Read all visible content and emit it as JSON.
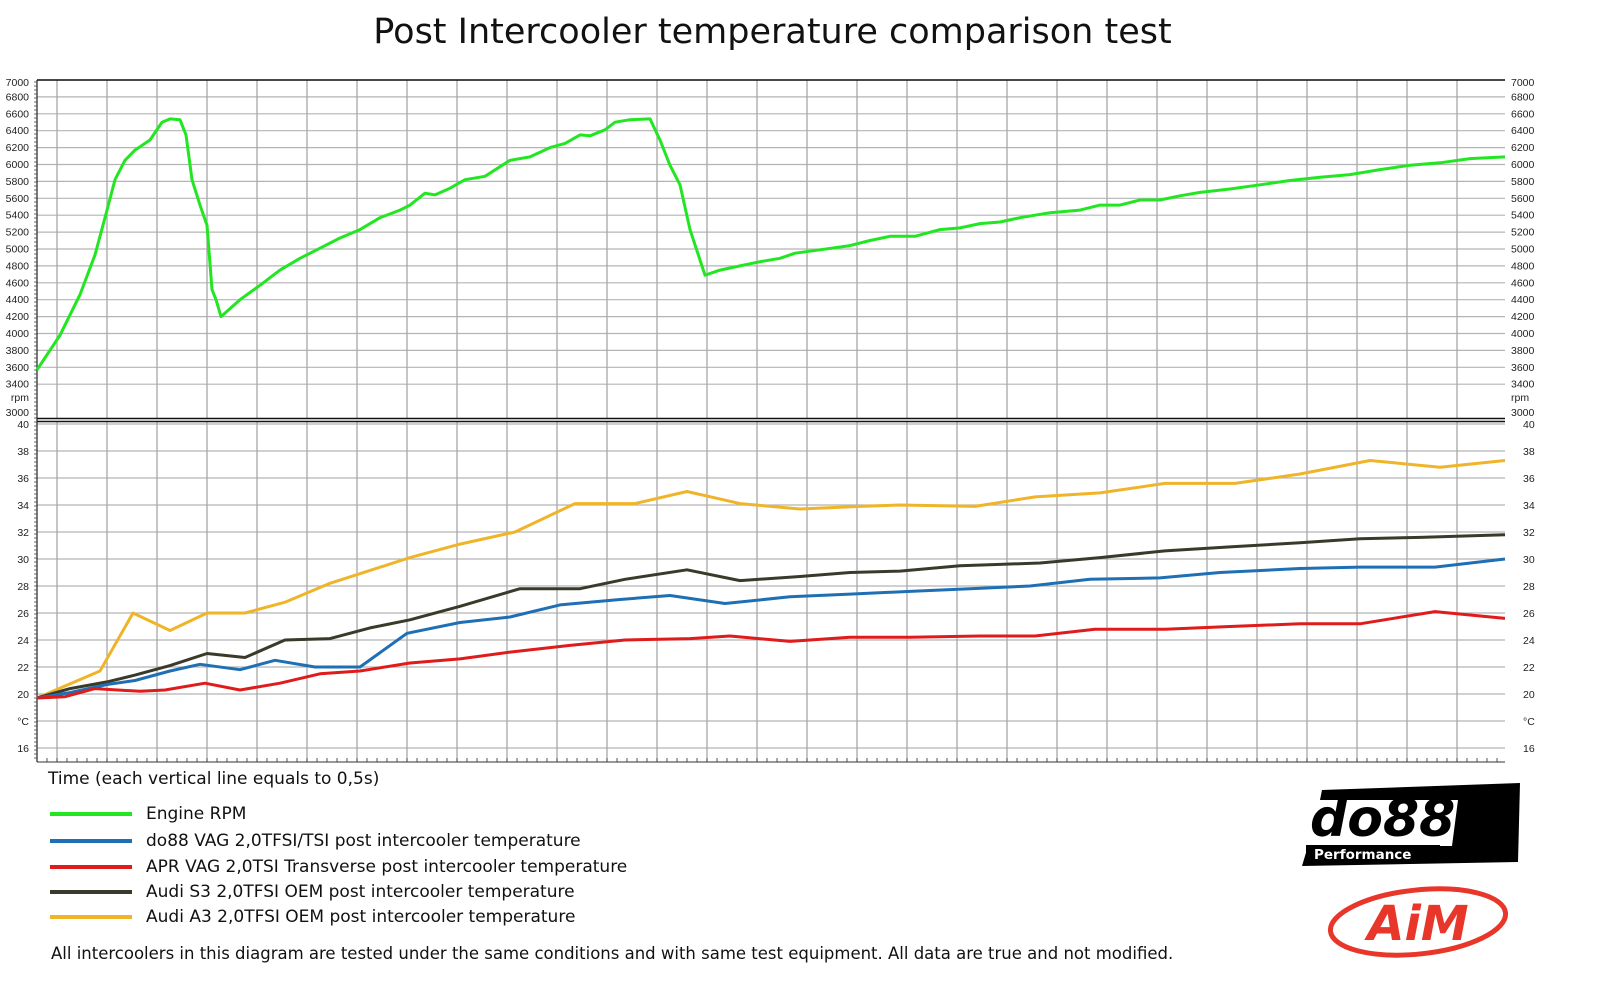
{
  "chart_data": {
    "title": "Post Intercooler temperature comparison test",
    "xlabel": "Time (each vertical line equals to 0,5s)",
    "type": "line",
    "grid": true,
    "legend_position": "bottom-left",
    "panels": [
      {
        "name": "rpm",
        "unit_label": "rpm",
        "ylim": [
          3000,
          7000
        ],
        "tick_labels": [
          "7000",
          "6800",
          "6600",
          "6400",
          "6200",
          "6000",
          "5800",
          "5600",
          "5400",
          "5200",
          "5000",
          "4800",
          "4600",
          "4400",
          "4200",
          "4000",
          "3800",
          "3600",
          "3400",
          "3000"
        ],
        "series": [
          {
            "name": "Engine RPM",
            "color": "#22e622",
            "x": [
              0,
              0.23,
              0.43,
              0.58,
              0.7,
              0.78,
              0.88,
              0.98,
              1.13,
              1.25,
              1.33,
              1.43,
              1.49,
              1.55,
              1.63,
              1.7,
              1.75,
              1.79,
              1.84,
              2.03,
              2.23,
              2.43,
              2.63,
              2.83,
              3.03,
              3.23,
              3.43,
              3.63,
              3.73,
              3.88,
              3.98,
              4.13,
              4.28,
              4.48,
              4.73,
              4.93,
              5.13,
              5.28,
              5.43,
              5.53,
              5.68,
              5.78,
              5.93,
              6.13,
              6.23,
              6.33,
              6.43,
              6.53,
              6.68,
              6.83,
              7.03,
              7.23,
              7.43,
              7.58,
              7.83,
              8.13,
              8.33,
              8.53,
              8.78,
              9.03,
              9.23,
              9.43,
              9.63,
              9.83,
              10.13,
              10.43,
              10.63,
              10.83,
              11.03,
              11.23,
              11.43,
              11.63,
              11.93,
              12.23,
              12.53,
              12.83,
              13.13,
              13.43,
              13.73,
              14.03,
              14.33,
              14.68
            ],
            "y": [
              3570,
              3980,
              4460,
              4930,
              5460,
              5820,
              6050,
              6170,
              6290,
              6500,
              6540,
              6530,
              6350,
              5820,
              5520,
              5280,
              4520,
              4400,
              4200,
              4400,
              4570,
              4750,
              4890,
              5010,
              5130,
              5230,
              5370,
              5460,
              5520,
              5660,
              5640,
              5720,
              5820,
              5860,
              6050,
              6090,
              6200,
              6250,
              6350,
              6340,
              6410,
              6500,
              6530,
              6540,
              6290,
              5990,
              5760,
              5230,
              4690,
              4750,
              4800,
              4850,
              4890,
              4950,
              4990,
              5040,
              5100,
              5150,
              5150,
              5230,
              5250,
              5300,
              5320,
              5370,
              5430,
              5460,
              5520,
              5520,
              5580,
              5580,
              5630,
              5670,
              5710,
              5760,
              5810,
              5850,
              5880,
              5940,
              5990,
              6020,
              6070,
              6090
            ]
          }
        ]
      },
      {
        "name": "temperature",
        "unit_label": "°C",
        "ylim": [
          15,
          40
        ],
        "tick_labels": [
          "40",
          "38",
          "36",
          "34",
          "32",
          "30",
          "28",
          "26",
          "24",
          "22",
          "20",
          "°C",
          "16"
        ],
        "series": [
          {
            "name": "do88 VAG 2,0TFSI/TSI post intercooler temperature",
            "color": "#1f6fb5",
            "x": [
              0,
              0.33,
              0.7,
              0.98,
              1.33,
              1.63,
              2.03,
              2.38,
              2.78,
              3.23,
              3.7,
              4.23,
              4.73,
              5.23,
              5.83,
              6.33,
              6.88,
              7.53,
              8.13,
              8.73,
              9.33,
              9.93,
              10.53,
              11.23,
              11.83,
              12.63,
              13.23,
              13.98,
              14.68
            ],
            "y": [
              19.7,
              20.1,
              20.7,
              21.0,
              21.7,
              22.2,
              21.8,
              22.5,
              22.0,
              22.0,
              24.5,
              25.3,
              25.7,
              26.6,
              27.0,
              27.3,
              26.7,
              27.2,
              27.4,
              27.6,
              27.8,
              28.0,
              28.5,
              28.6,
              29.0,
              29.3,
              29.4,
              29.4,
              30.0
            ]
          },
          {
            "name": "APR VAG 2,0TSI Transverse post intercooler temperature",
            "color": "#e01b1b",
            "x": [
              0,
              0.28,
              0.58,
              1.03,
              1.28,
              1.68,
              2.03,
              2.43,
              2.83,
              3.23,
              3.73,
              4.23,
              4.73,
              5.33,
              5.88,
              6.53,
              6.93,
              7.53,
              8.13,
              8.73,
              9.43,
              9.98,
              10.58,
              11.28,
              11.93,
              12.63,
              13.23,
              13.98,
              14.68
            ],
            "y": [
              19.7,
              19.8,
              20.4,
              20.2,
              20.3,
              20.8,
              20.3,
              20.8,
              21.5,
              21.7,
              22.3,
              22.6,
              23.1,
              23.6,
              24.0,
              24.1,
              24.3,
              23.9,
              24.2,
              24.2,
              24.3,
              24.3,
              24.8,
              24.8,
              25.0,
              25.2,
              25.2,
              26.1,
              25.6
            ]
          },
          {
            "name": "Audi S3 2,0TFSI OEM post intercooler temperature",
            "color": "#3a3a2a",
            "x": [
              0,
              0.33,
              0.7,
              0.98,
              1.33,
              1.7,
              2.08,
              2.48,
              2.93,
              3.33,
              3.73,
              4.23,
              4.83,
              5.43,
              5.88,
              6.5,
              7.03,
              7.63,
              8.13,
              8.63,
              9.23,
              9.63,
              10.03,
              10.63,
              11.28,
              11.93,
              12.63,
              13.23,
              13.83,
              14.68
            ],
            "y": [
              19.7,
              20.4,
              20.9,
              21.4,
              22.1,
              23.0,
              22.7,
              24.0,
              24.1,
              24.9,
              25.5,
              26.5,
              27.8,
              27.8,
              28.5,
              29.2,
              28.4,
              28.7,
              29.0,
              29.1,
              29.5,
              29.6,
              29.7,
              30.1,
              30.6,
              30.9,
              31.2,
              31.5,
              31.6,
              31.8
            ]
          },
          {
            "name": "Audi A3 2,0TFSI OEM post intercooler temperature",
            "color": "#f0b429",
            "x": [
              0,
              0.63,
              0.96,
              1.33,
              1.7,
              2.08,
              2.48,
              2.93,
              3.73,
              4.23,
              4.78,
              5.38,
              5.98,
              6.5,
              7.03,
              7.63,
              8.23,
              8.63,
              9.38,
              9.98,
              10.63,
              11.28,
              11.98,
              12.63,
              13.33,
              14.03,
              14.68
            ],
            "y": [
              19.7,
              21.7,
              26.0,
              24.7,
              26.0,
              26.0,
              26.8,
              28.2,
              30.1,
              31.1,
              32.0,
              34.1,
              34.1,
              35.0,
              34.1,
              33.7,
              33.9,
              34.0,
              33.9,
              34.6,
              34.9,
              35.6,
              35.6,
              36.3,
              37.3,
              36.8,
              37.3
            ]
          }
        ]
      }
    ]
  },
  "note": "All intercoolers in this diagram are tested under the same conditions and with same test equipment. All data are true and not modified.",
  "logos": {
    "do88": "do88",
    "do88_sub": "Performance",
    "aim": "AiM"
  }
}
